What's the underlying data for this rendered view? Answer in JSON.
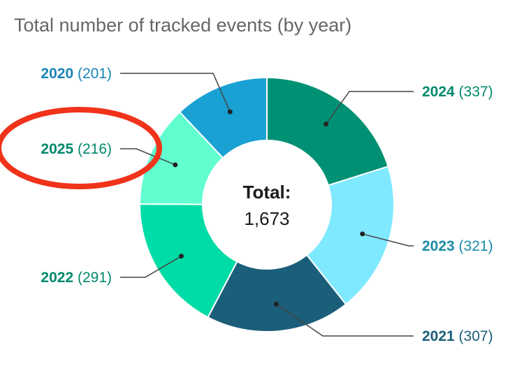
{
  "chart_data": {
    "type": "pie",
    "donut": true,
    "title": "Total number of tracked events (by year)",
    "slice_order_clockwise_from_top": [
      "2024",
      "2023",
      "2021",
      "2022",
      "2025",
      "2020"
    ],
    "slices": [
      {
        "label": "2024",
        "value": 337,
        "value_text": "(337)",
        "color": "#009174",
        "label_color": "#00896B"
      },
      {
        "label": "2023",
        "value": 321,
        "value_text": "(321)",
        "color": "#7FE9FF",
        "label_color": "#1A8BA8"
      },
      {
        "label": "2021",
        "value": 307,
        "value_text": "(307)",
        "color": "#1B5E7A",
        "label_color": "#1B5E7A"
      },
      {
        "label": "2022",
        "value": 291,
        "value_text": "(291)",
        "color": "#00DCA7",
        "label_color": "#00896B"
      },
      {
        "label": "2025",
        "value": 216,
        "value_text": "(216)",
        "color": "#61FFD0",
        "label_color": "#00896B"
      },
      {
        "label": "2020",
        "value": 201,
        "value_text": "(201)",
        "color": "#19A1D4",
        "label_color": "#1985B5"
      }
    ],
    "center_label": "Total:",
    "center_value": "1,673",
    "annotation": {
      "type": "ellipse",
      "target": "2025",
      "color": "#F0331A"
    }
  }
}
